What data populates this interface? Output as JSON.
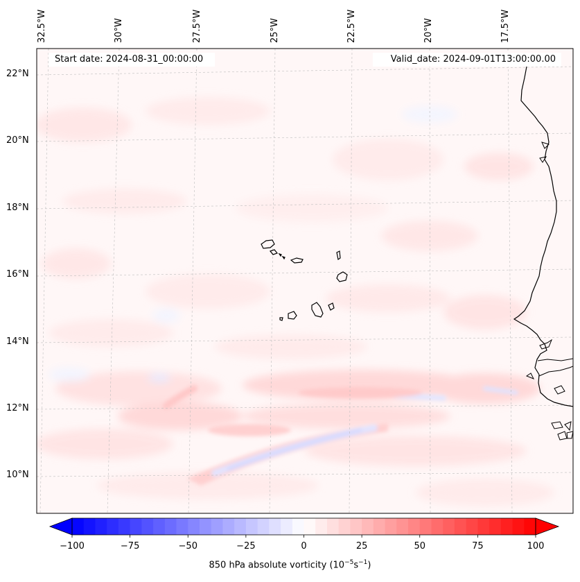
{
  "map": {
    "start_date": "Start date: 2024-08-31_00:00:00",
    "valid_date": "Valid_date: 2024-09-01T13:00:00.00",
    "lon_labels": [
      "32.5°W",
      "30°W",
      "27.5°W",
      "25°W",
      "22.5°W",
      "20°W",
      "17.5°W"
    ],
    "lat_labels": [
      "22°N",
      "20°N",
      "18°N",
      "16°N",
      "14°N",
      "12°N",
      "10°N"
    ]
  },
  "colorbar": {
    "label": "850 hPa absolute vorticity (10",
    "label_exp": "−5",
    "label_unit": "s",
    "label_exp2": "−1",
    "label_end": ")",
    "ticks": [
      "−100",
      "−75",
      "−50",
      "−25",
      "0",
      "25",
      "50",
      "75",
      "100"
    ],
    "min": -100,
    "max": 100,
    "min_color": "#0000ff",
    "mid_color": "#ffffff",
    "max_color": "#ff0000"
  }
}
